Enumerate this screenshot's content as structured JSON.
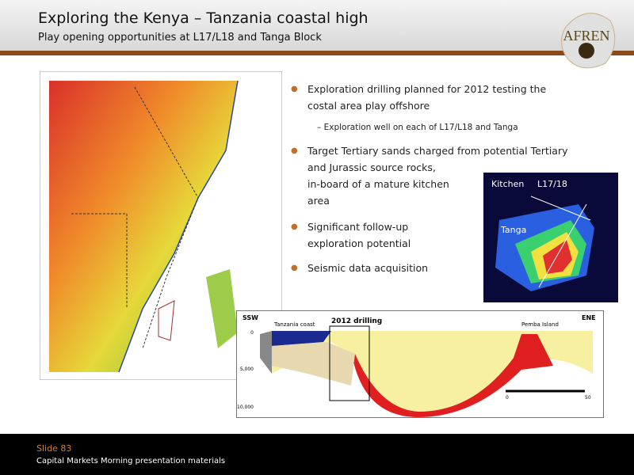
{
  "header": {
    "title": "Exploring the Kenya – Tanzania coastal high",
    "subtitle": "Play opening opportunities at L17/L18 and Tanga Block"
  },
  "logo": "AFREN",
  "bullets": [
    {
      "lines": [
        "Exploration drilling planned for 2012 testing the",
        "costal area play offshore"
      ],
      "sub": "Exploration well on each of L17/L18 and Tanga"
    },
    {
      "lines": [
        "Target Tertiary sands charged from potential Tertiary",
        "and Jurassic source rocks,",
        "in-board  of a mature kitchen",
        "area"
      ]
    },
    {
      "lines": [
        "Significant follow-up",
        "exploration potential"
      ]
    },
    {
      "lines": [
        "Seismic data acquisition"
      ]
    }
  ],
  "inset": {
    "labels": [
      "Kitchen",
      "L17/18",
      "Tanga"
    ]
  },
  "section": {
    "left": "SSW",
    "right": "ENE",
    "labels": [
      "Tanzania coast",
      "2012 drilling",
      "Pemba Island"
    ],
    "depths": [
      "0",
      "5,000",
      "10,000"
    ],
    "scale": [
      "0",
      "50"
    ]
  },
  "footer": {
    "slide": "Slide 83",
    "note": "Capital Markets Morning presentation materials"
  }
}
